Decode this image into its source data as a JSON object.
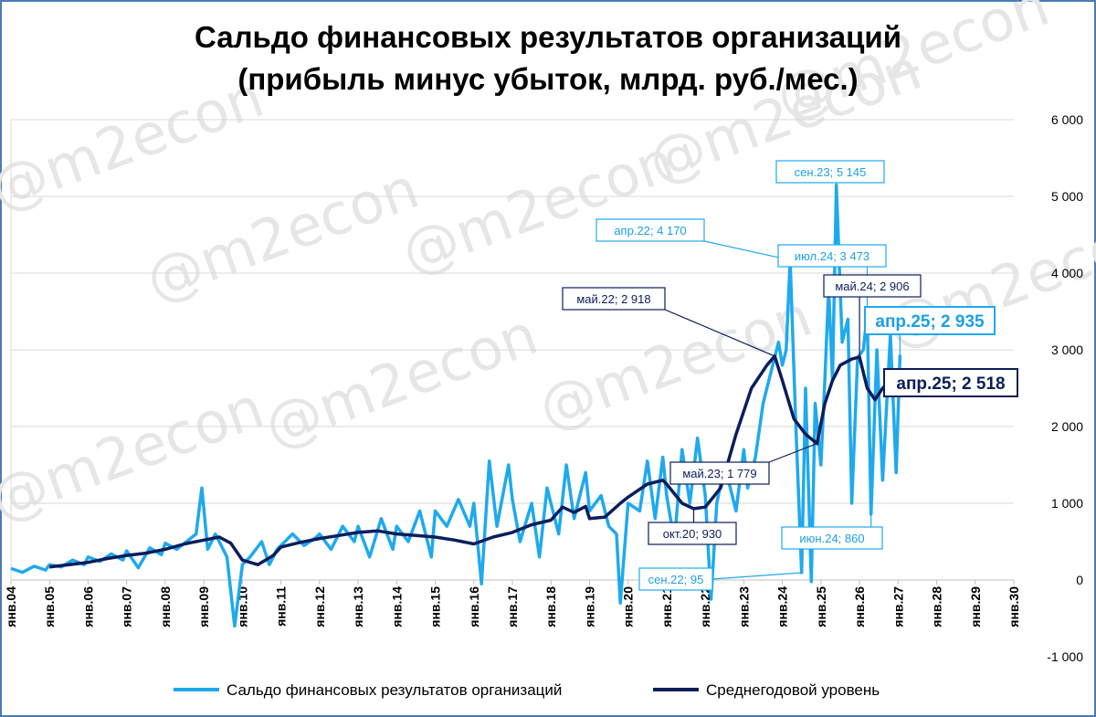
{
  "chart_data": {
    "type": "line",
    "title_line1": "Сальдо финансовых результатов организаций",
    "title_line2": "(прибыль минус убыток, млрд. руб./мес.)",
    "y_ticks": [
      "6 000",
      "5 000",
      "4 000",
      "3 000",
      "2 000",
      "1 000",
      "0",
      "-1 000"
    ],
    "ylim": [
      -1000,
      6000
    ],
    "x_ticks": [
      "янв.04",
      "янв.05",
      "янв.06",
      "янв.07",
      "янв.08",
      "янв.09",
      "янв.10",
      "янв.11",
      "янв.12",
      "янв.13",
      "янв.14",
      "янв.15",
      "янв.16",
      "янв.17",
      "янв.18",
      "янв.19",
      "янв.20",
      "янв.21",
      "янв.22",
      "янв.23",
      "янв.24",
      "янв.25",
      "янв.26",
      "янв.27",
      "янв.28",
      "янв.29",
      "янв.30"
    ],
    "x_start_year": 2004,
    "colors": {
      "monthly": "#1fa9ee",
      "average": "#0b1d5c",
      "frame": "#4a7bb7"
    },
    "series": [
      {
        "name": "Сальдо финансовых результатов организаций",
        "points": [
          [
            2004.0,
            150
          ],
          [
            2004.3,
            100
          ],
          [
            2004.6,
            180
          ],
          [
            2004.9,
            130
          ],
          [
            2005.0,
            200
          ],
          [
            2005.3,
            170
          ],
          [
            2005.6,
            260
          ],
          [
            2005.9,
            200
          ],
          [
            2006.0,
            300
          ],
          [
            2006.3,
            240
          ],
          [
            2006.6,
            340
          ],
          [
            2006.9,
            260
          ],
          [
            2007.0,
            380
          ],
          [
            2007.3,
            160
          ],
          [
            2007.6,
            420
          ],
          [
            2007.9,
            330
          ],
          [
            2008.0,
            480
          ],
          [
            2008.3,
            400
          ],
          [
            2008.5,
            480
          ],
          [
            2008.8,
            600
          ],
          [
            2008.95,
            1200
          ],
          [
            2009.1,
            400
          ],
          [
            2009.3,
            600
          ],
          [
            2009.6,
            300
          ],
          [
            2009.8,
            -600
          ],
          [
            2010.0,
            200
          ],
          [
            2010.2,
            300
          ],
          [
            2010.5,
            500
          ],
          [
            2010.7,
            200
          ],
          [
            2010.9,
            400
          ],
          [
            2011.0,
            450
          ],
          [
            2011.3,
            600
          ],
          [
            2011.6,
            450
          ],
          [
            2011.9,
            550
          ],
          [
            2012.0,
            600
          ],
          [
            2012.3,
            400
          ],
          [
            2012.6,
            700
          ],
          [
            2012.9,
            500
          ],
          [
            2013.0,
            700
          ],
          [
            2013.3,
            300
          ],
          [
            2013.6,
            800
          ],
          [
            2013.9,
            400
          ],
          [
            2014.0,
            700
          ],
          [
            2014.3,
            500
          ],
          [
            2014.6,
            900
          ],
          [
            2014.9,
            300
          ],
          [
            2015.0,
            900
          ],
          [
            2015.3,
            700
          ],
          [
            2015.6,
            1050
          ],
          [
            2015.9,
            700
          ],
          [
            2016.0,
            1000
          ],
          [
            2016.2,
            -50
          ],
          [
            2016.4,
            1550
          ],
          [
            2016.6,
            700
          ],
          [
            2016.9,
            1500
          ],
          [
            2017.0,
            1050
          ],
          [
            2017.2,
            500
          ],
          [
            2017.5,
            1000
          ],
          [
            2017.7,
            300
          ],
          [
            2017.9,
            1200
          ],
          [
            2018.0,
            1000
          ],
          [
            2018.2,
            600
          ],
          [
            2018.4,
            1500
          ],
          [
            2018.6,
            800
          ],
          [
            2018.9,
            1400
          ],
          [
            2019.0,
            900
          ],
          [
            2019.3,
            1100
          ],
          [
            2019.5,
            700
          ],
          [
            2019.7,
            600
          ],
          [
            2019.8,
            -300
          ],
          [
            2020.0,
            1000
          ],
          [
            2020.3,
            900
          ],
          [
            2020.5,
            1550
          ],
          [
            2020.7,
            800
          ],
          [
            2020.9,
            1600
          ],
          [
            2021.0,
            1100
          ],
          [
            2021.2,
            500
          ],
          [
            2021.4,
            1700
          ],
          [
            2021.6,
            1000
          ],
          [
            2021.8,
            1850
          ],
          [
            2022.0,
            1100
          ],
          [
            2022.15,
            -250
          ],
          [
            2022.3,
            1000
          ],
          [
            2022.5,
            1500
          ],
          [
            2022.7,
            1100
          ],
          [
            2022.8,
            900
          ],
          [
            2023.0,
            1700
          ],
          [
            2023.1,
            1200
          ],
          [
            2023.3,
            1600
          ],
          [
            2023.5,
            2300
          ],
          [
            2023.7,
            2700
          ],
          [
            2023.9,
            3100
          ],
          [
            2024.0,
            2800
          ],
          [
            2024.1,
            3000
          ],
          [
            2024.2,
            4170
          ],
          [
            2024.35,
            2000
          ],
          [
            2024.5,
            95
          ],
          [
            2024.6,
            2500
          ],
          [
            2024.75,
            -20
          ],
          [
            2024.85,
            2300
          ],
          [
            2025.0,
            1500
          ],
          [
            2025.1,
            2600
          ],
          [
            2025.2,
            3800
          ],
          [
            2025.3,
            2600
          ],
          [
            2025.4,
            5145
          ],
          [
            2025.55,
            3100
          ],
          [
            2025.7,
            3400
          ],
          [
            2025.8,
            1000
          ],
          [
            2025.95,
            2900
          ],
          [
            2026.1,
            3000
          ],
          [
            2026.2,
            3473
          ],
          [
            2026.3,
            860
          ],
          [
            2026.45,
            3000
          ],
          [
            2026.6,
            1300
          ],
          [
            2026.8,
            3200
          ],
          [
            2026.95,
            1400
          ],
          [
            2027.05,
            2935
          ]
        ]
      },
      {
        "name": "Среднегодовой уровень",
        "points": [
          [
            2005.0,
            170
          ],
          [
            2005.5,
            200
          ],
          [
            2006.0,
            230
          ],
          [
            2006.5,
            280
          ],
          [
            2007.0,
            320
          ],
          [
            2007.5,
            350
          ],
          [
            2008.0,
            400
          ],
          [
            2008.5,
            470
          ],
          [
            2009.0,
            520
          ],
          [
            2009.4,
            560
          ],
          [
            2009.7,
            480
          ],
          [
            2010.0,
            260
          ],
          [
            2010.4,
            200
          ],
          [
            2010.8,
            320
          ],
          [
            2011.0,
            430
          ],
          [
            2011.5,
            490
          ],
          [
            2012.0,
            540
          ],
          [
            2012.5,
            580
          ],
          [
            2013.0,
            620
          ],
          [
            2013.5,
            640
          ],
          [
            2014.0,
            600
          ],
          [
            2014.5,
            580
          ],
          [
            2015.0,
            560
          ],
          [
            2015.5,
            520
          ],
          [
            2016.0,
            470
          ],
          [
            2016.5,
            560
          ],
          [
            2017.0,
            620
          ],
          [
            2017.5,
            720
          ],
          [
            2018.0,
            780
          ],
          [
            2018.3,
            950
          ],
          [
            2018.6,
            880
          ],
          [
            2018.9,
            960
          ],
          [
            2019.0,
            800
          ],
          [
            2019.4,
            820
          ],
          [
            2019.8,
            1000
          ],
          [
            2020.0,
            1080
          ],
          [
            2020.5,
            1250
          ],
          [
            2020.9,
            1300
          ],
          [
            2021.0,
            1250
          ],
          [
            2021.4,
            1000
          ],
          [
            2021.7,
            930
          ],
          [
            2022.0,
            950
          ],
          [
            2022.4,
            1200
          ],
          [
            2022.8,
            1900
          ],
          [
            2023.2,
            2500
          ],
          [
            2023.6,
            2800
          ],
          [
            2023.8,
            2918
          ],
          [
            2024.0,
            2600
          ],
          [
            2024.3,
            2100
          ],
          [
            2024.6,
            1900
          ],
          [
            2024.9,
            1779
          ],
          [
            2025.1,
            2300
          ],
          [
            2025.3,
            2600
          ],
          [
            2025.5,
            2800
          ],
          [
            2025.8,
            2880
          ],
          [
            2026.0,
            2906
          ],
          [
            2026.2,
            2500
          ],
          [
            2026.4,
            2350
          ],
          [
            2026.6,
            2500
          ],
          [
            2026.8,
            2600
          ],
          [
            2027.05,
            2518
          ]
        ]
      }
    ],
    "annotations": [
      {
        "text": "сен.23; 5 145",
        "x": 2025.4,
        "y": 5145,
        "style": "light"
      },
      {
        "text": "апр.22; 4 170",
        "x": 2024.2,
        "y": 4170,
        "style": "light"
      },
      {
        "text": "июл.24; 3 473",
        "x": 2026.2,
        "y": 3473,
        "style": "light"
      },
      {
        "text": "май.22; 2 918",
        "x": 2023.8,
        "y": 2918,
        "style": "dark"
      },
      {
        "text": "май.24; 2 906",
        "x": 2026.0,
        "y": 2906,
        "style": "dark"
      },
      {
        "text": "апр.25; 2 935",
        "x": 2027.05,
        "y": 2935,
        "style": "light-big"
      },
      {
        "text": "апр.25; 2 518",
        "x": 2027.05,
        "y": 2518,
        "style": "dark-big"
      },
      {
        "text": "май.23; 1 779",
        "x": 2024.9,
        "y": 1779,
        "style": "dark"
      },
      {
        "text": "окт.20; 930",
        "x": 2021.7,
        "y": 930,
        "style": "dark"
      },
      {
        "text": "июн.24; 860",
        "x": 2026.3,
        "y": 860,
        "style": "light"
      },
      {
        "text": "сен.22; 95",
        "x": 2024.5,
        "y": 95,
        "style": "light"
      }
    ],
    "watermark": "@m2econ",
    "legend": [
      "Сальдо финансовых результатов организаций",
      "Среднегодовой уровень"
    ]
  }
}
